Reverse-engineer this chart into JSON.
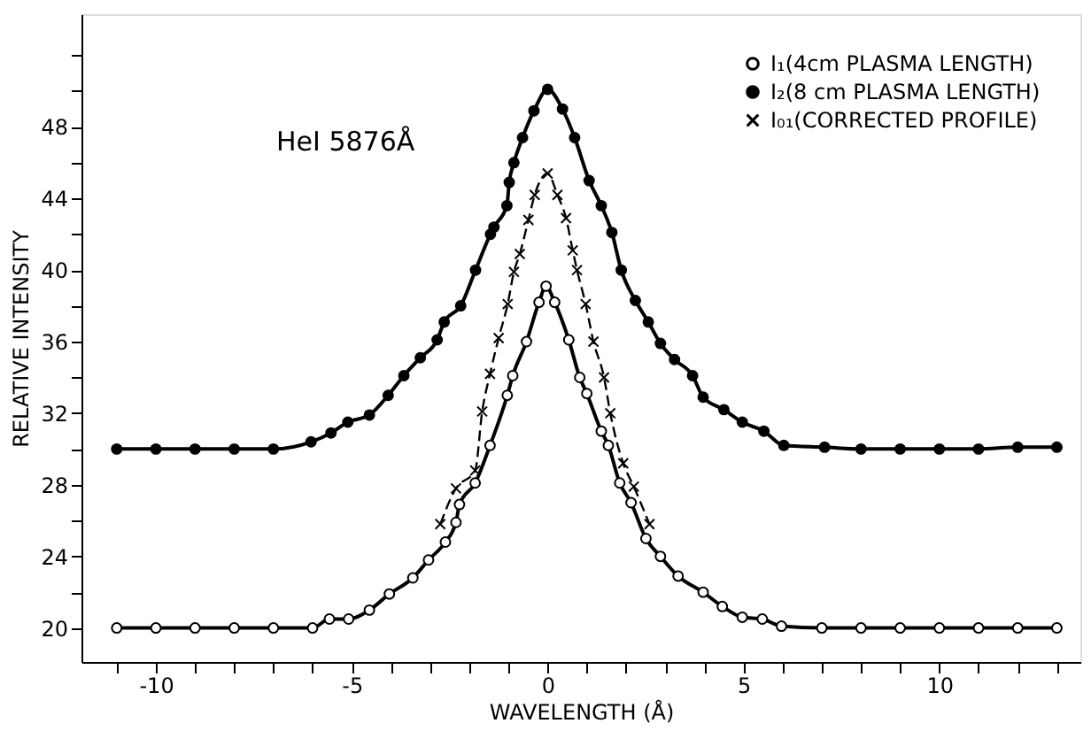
{
  "chart_data": {
    "type": "line",
    "xlabel": "WAVELENGTH (Å)",
    "ylabel": "RELATIVE INTENSITY",
    "annotations": [
      "HeI 5876Å"
    ],
    "xlim": [
      -11.9,
      13.6
    ],
    "ylim": [
      18.1,
      54.3
    ],
    "xticks": [
      {
        "value": -11,
        "label": null
      },
      -10,
      {
        "value": -9,
        "label": null
      },
      {
        "value": -8,
        "label": null
      },
      {
        "value": -7,
        "label": null
      },
      {
        "value": -6,
        "label": null
      },
      -5,
      {
        "value": -4,
        "label": null
      },
      {
        "value": -3,
        "label": null
      },
      {
        "value": -2,
        "label": null
      },
      {
        "value": -1,
        "label": null
      },
      0,
      {
        "value": 1,
        "label": null
      },
      {
        "value": 2,
        "label": null
      },
      {
        "value": 3,
        "label": null
      },
      {
        "value": 4,
        "label": null
      },
      5,
      {
        "value": 6,
        "label": null
      },
      {
        "value": 7,
        "label": null
      },
      {
        "value": 8,
        "label": null
      },
      {
        "value": 9,
        "label": null
      },
      10,
      {
        "value": 11,
        "label": null
      },
      {
        "value": 12,
        "label": null
      },
      {
        "value": 13,
        "label": null
      }
    ],
    "yticks": [
      20,
      {
        "value": 22,
        "label": null
      },
      24,
      {
        "value": 26,
        "label": null
      },
      28,
      {
        "value": 30,
        "label": null
      },
      32,
      {
        "value": 34,
        "label": null
      },
      36,
      {
        "value": 38,
        "label": null
      },
      40,
      {
        "value": 42,
        "label": null
      },
      44,
      {
        "value": 46,
        "label": null
      },
      48,
      {
        "value": 50,
        "label": null
      },
      {
        "value": 52,
        "label": null
      }
    ],
    "grid": false,
    "legend": "top right",
    "series": [
      {
        "name": "I₁(4cm PLASMA LENGTH)",
        "color": "#000000",
        "marker": "circle",
        "line_style": "solid",
        "x": [
          -11,
          -10,
          -9,
          -8,
          -7,
          -6,
          -5.57,
          -5.08,
          -4.55,
          -4.04,
          -3.44,
          -3.04,
          -2.61,
          -2.34,
          -2.25,
          -1.85,
          -1.47,
          -1.03,
          -0.89,
          -0.54,
          -0.22,
          -0.04,
          0.18,
          0.54,
          0.82,
          1.0,
          1.37,
          1.55,
          1.84,
          2.13,
          2.51,
          2.88,
          3.33,
          3.97,
          4.46,
          4.97,
          5.48,
          5.97,
          7,
          8,
          9,
          10,
          11,
          12,
          13
        ],
        "values": [
          20,
          20,
          20,
          20,
          20,
          20,
          20.5,
          20.5,
          21.0,
          21.9,
          22.8,
          23.8,
          24.8,
          25.9,
          26.9,
          28.1,
          30.2,
          33.0,
          34.1,
          36.0,
          38.2,
          39.1,
          38.2,
          36.1,
          34.0,
          33.1,
          31.0,
          30.2,
          28.1,
          27.0,
          25.0,
          24.0,
          22.9,
          22.0,
          21.2,
          20.6,
          20.5,
          20.1,
          20,
          20,
          20,
          20,
          20,
          20,
          20
        ]
      },
      {
        "name": "I₂(8 cm PLASMA LENGTH)",
        "color": "#000000",
        "marker": "circle",
        "line_style": "solid",
        "x": [
          -11,
          -10,
          -9,
          -8,
          -7,
          -6.04,
          -5.53,
          -5.1,
          -4.55,
          -4.07,
          -3.67,
          -3.25,
          -2.82,
          -2.64,
          -2.22,
          -1.84,
          -1.46,
          -1.37,
          -1.04,
          -0.98,
          -0.86,
          -0.64,
          -0.35,
          0,
          0.38,
          0.69,
          1.06,
          1.37,
          1.64,
          1.88,
          2.24,
          2.57,
          2.88,
          3.24,
          3.7,
          3.97,
          4.5,
          4.97,
          5.52,
          6.03,
          7.07,
          8,
          9,
          10,
          11,
          12,
          13
        ],
        "values": [
          30,
          30,
          30,
          30,
          30,
          30.4,
          30.9,
          31.5,
          31.9,
          33.0,
          34.1,
          35.1,
          36.1,
          37.1,
          38.0,
          40.0,
          42.0,
          42.4,
          43.6,
          44.9,
          46.0,
          47.4,
          48.9,
          50.1,
          49.0,
          47.4,
          45.0,
          43.6,
          42.1,
          40.0,
          38.3,
          37.1,
          35.9,
          35.0,
          34.1,
          32.9,
          32.2,
          31.5,
          31.0,
          30.2,
          30.1,
          30,
          30,
          30,
          30,
          30.1,
          30.1
        ]
      },
      {
        "name": "I₀₁(CORRECTED PROFILE)",
        "color": "#000000",
        "marker": "cross",
        "line_style": "dashed",
        "x": [
          -2.74,
          -2.34,
          -1.85,
          -1.67,
          -1.47,
          -1.25,
          -1.02,
          -0.86,
          -0.71,
          -0.49,
          -0.33,
          0,
          0.25,
          0.47,
          0.64,
          0.75,
          0.97,
          1.17,
          1.44,
          1.6,
          1.93,
          2.2,
          2.6
        ],
        "values": [
          25.8,
          27.8,
          28.8,
          32.1,
          34.2,
          36.2,
          38.1,
          39.9,
          40.9,
          42.8,
          44.2,
          45.4,
          44.2,
          42.9,
          41.1,
          40.0,
          38.1,
          36.0,
          34.0,
          32.0,
          29.2,
          27.9,
          25.8
        ]
      }
    ]
  }
}
